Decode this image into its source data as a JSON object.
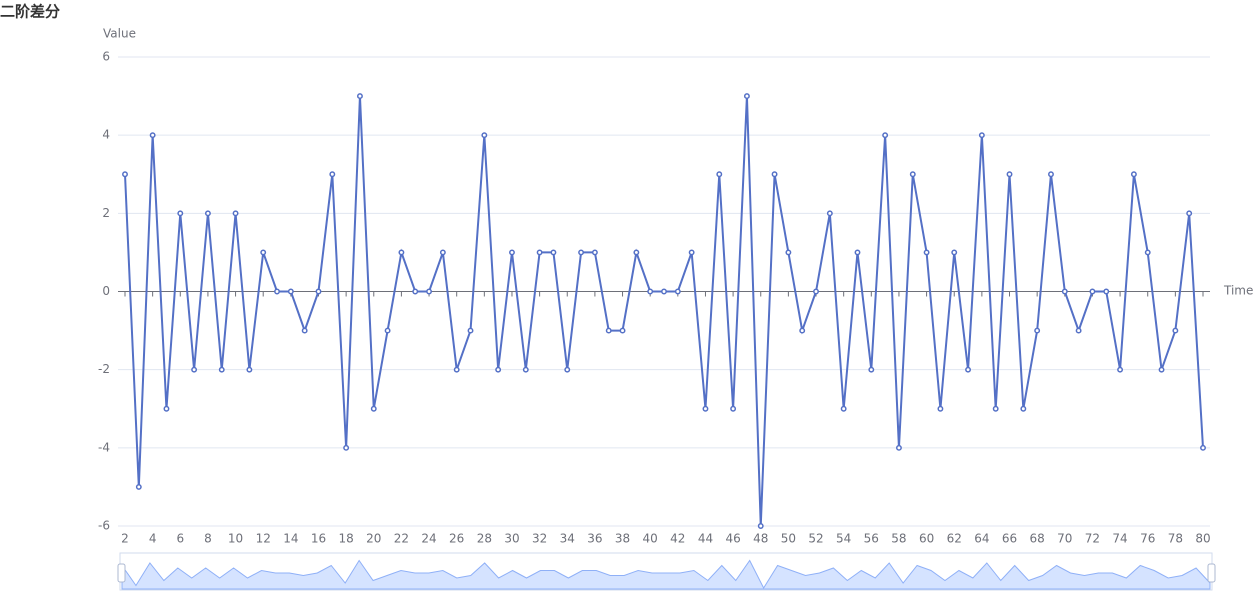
{
  "chart_data": {
    "type": "line",
    "title": "二阶差分",
    "y_label": "Value",
    "x_label": "Time",
    "x": [
      2,
      3,
      4,
      5,
      6,
      7,
      8,
      9,
      10,
      11,
      12,
      13,
      14,
      15,
      16,
      17,
      18,
      19,
      20,
      21,
      22,
      23,
      24,
      25,
      26,
      27,
      28,
      29,
      30,
      31,
      32,
      33,
      34,
      35,
      36,
      37,
      38,
      39,
      40,
      41,
      42,
      43,
      44,
      45,
      46,
      47,
      48,
      49,
      50,
      51,
      52,
      53,
      54,
      55,
      56,
      57,
      58,
      59,
      60,
      61,
      62,
      63,
      64,
      65,
      66,
      67,
      68,
      69,
      70,
      71,
      72,
      73,
      74,
      75,
      76,
      77,
      78,
      79,
      80
    ],
    "values": [
      3,
      -5,
      4,
      -3,
      2,
      -2,
      2,
      -2,
      2,
      -2,
      1,
      0,
      0,
      -1,
      0,
      3,
      -4,
      5,
      -3,
      -1,
      1,
      0,
      0,
      1,
      -2,
      -1,
      4,
      -2,
      1,
      -2,
      1,
      1,
      -2,
      1,
      1,
      -1,
      -1,
      1,
      0,
      0,
      0,
      1,
      -3,
      3,
      -3,
      5,
      -6,
      3,
      1,
      -1,
      0,
      2,
      -3,
      1,
      -2,
      4,
      -4,
      3,
      1,
      -3,
      1,
      -2,
      4,
      -3,
      3,
      -3,
      -1,
      3,
      0,
      -1,
      0,
      0,
      -2,
      3,
      1,
      -2,
      -1,
      2,
      -4
    ],
    "color": "#5470c6",
    "xlim": [
      2,
      80
    ],
    "xticks": [
      2,
      4,
      6,
      8,
      10,
      12,
      14,
      16,
      18,
      20,
      22,
      24,
      26,
      28,
      30,
      32,
      34,
      36,
      38,
      40,
      42,
      44,
      46,
      48,
      50,
      52,
      54,
      56,
      58,
      60,
      62,
      64,
      66,
      68,
      70,
      72,
      74,
      76,
      78,
      80
    ],
    "ylim": [
      -6,
      6
    ],
    "yticks": [
      -6,
      -4,
      -2,
      0,
      2,
      4,
      6
    ],
    "grid": true
  }
}
